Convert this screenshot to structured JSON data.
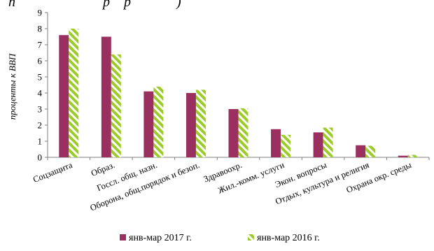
{
  "title_fragment": "п                         р    р             )",
  "colors": {
    "series_2017": "#99305f",
    "series_2016": "#9ccc2a",
    "axis": "#7f7f7f"
  },
  "chart_data": {
    "type": "bar",
    "ylabel": "проценты к ВВП",
    "xlabel": "",
    "ylim": [
      0,
      9
    ],
    "yticks": [
      0,
      1,
      2,
      3,
      4,
      5,
      6,
      7,
      8,
      9
    ],
    "grid": false,
    "legend_position": "bottom",
    "categories": [
      "Соцзащита",
      "Образ.",
      "Госсл. общ. назн.",
      "Оборона, общ.порядок и безоп.",
      "Здравоохр.",
      "Жил.-комм. услуги",
      "Экон. вопросы",
      "Отдых, культура и религия",
      "Охрана окр. среды"
    ],
    "series": [
      {
        "name": "янв-мар 2017 г.",
        "style": "solid",
        "values": [
          7.6,
          7.5,
          4.1,
          4.0,
          3.0,
          1.75,
          1.55,
          0.75,
          0.1
        ]
      },
      {
        "name": "янв-мар 2016 г.",
        "style": "hatched",
        "values": [
          8.0,
          6.4,
          4.4,
          4.2,
          3.05,
          1.4,
          1.85,
          0.72,
          0.15
        ]
      }
    ]
  }
}
